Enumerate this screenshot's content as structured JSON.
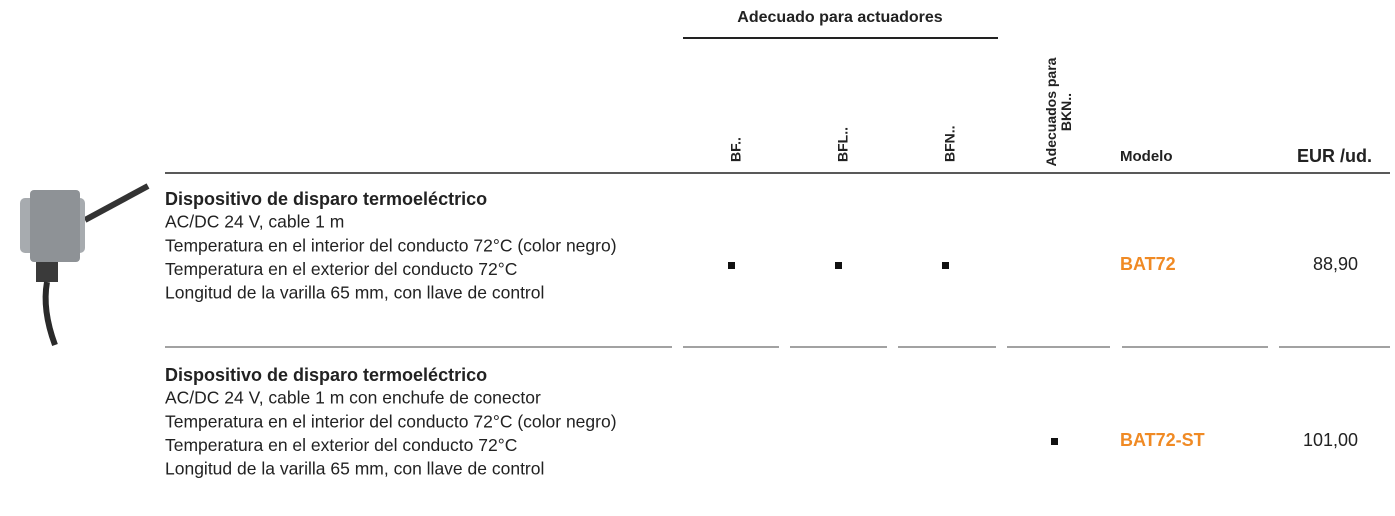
{
  "header": {
    "group_title": "Adecuado para actuadores",
    "columns": [
      "BF..",
      "BFL..",
      "BFN..",
      "Adecuados para BKN..",
      "Modelo",
      "EUR /ud."
    ]
  },
  "table": {
    "rows": [
      {
        "title": "Dispositivo de disparo termoeléctrico",
        "lines": [
          "AC/DC 24 V, cable 1 m",
          "Temperatura en el interior del conducto 72°C (color negro)",
          "Temperatura en el exterior del conducto 72°C",
          "Longitud de la varilla 65 mm, con llave de control"
        ],
        "suitable": [
          true,
          true,
          true,
          false
        ],
        "model": "BAT72",
        "price": "88,90"
      },
      {
        "title": "Dispositivo de disparo termoeléctrico",
        "lines": [
          "AC/DC 24 V, cable 1 m con enchufe de conector",
          "Temperatura en el interior del conducto 72°C (color negro)",
          "Temperatura en el exterior del conducto 72°C",
          "Longitud de la varilla 65 mm, con llave de control"
        ],
        "suitable": [
          false,
          false,
          false,
          true
        ],
        "model": "BAT72-ST",
        "price": "101,00"
      }
    ]
  }
}
